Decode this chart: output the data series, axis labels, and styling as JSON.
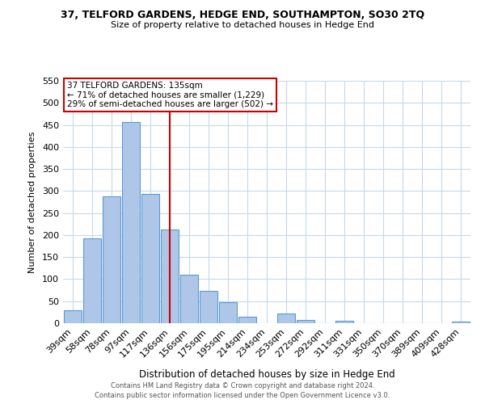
{
  "title_line1": "37, TELFORD GARDENS, HEDGE END, SOUTHAMPTON, SO30 2TQ",
  "title_line2": "Size of property relative to detached houses in Hedge End",
  "xlabel": "Distribution of detached houses by size in Hedge End",
  "ylabel": "Number of detached properties",
  "bin_labels": [
    "39sqm",
    "58sqm",
    "78sqm",
    "97sqm",
    "117sqm",
    "136sqm",
    "156sqm",
    "175sqm",
    "195sqm",
    "214sqm",
    "234sqm",
    "253sqm",
    "272sqm",
    "292sqm",
    "311sqm",
    "331sqm",
    "350sqm",
    "370sqm",
    "389sqm",
    "409sqm",
    "428sqm"
  ],
  "bar_heights": [
    30,
    192,
    287,
    457,
    293,
    213,
    110,
    74,
    47,
    14,
    0,
    22,
    8,
    0,
    5,
    0,
    0,
    0,
    0,
    0,
    3
  ],
  "bar_color": "#aec6e8",
  "bar_edge_color": "#5b9bd5",
  "vline_x": 5,
  "vline_color": "#cc0000",
  "annotation_title": "37 TELFORD GARDENS: 135sqm",
  "annotation_line1": "← 71% of detached houses are smaller (1,229)",
  "annotation_line2": "29% of semi-detached houses are larger (502) →",
  "annotation_box_color": "#ffffff",
  "annotation_box_edge_color": "#cc0000",
  "ylim": [
    0,
    550
  ],
  "yticks": [
    0,
    50,
    100,
    150,
    200,
    250,
    300,
    350,
    400,
    450,
    500,
    550
  ],
  "footer_line1": "Contains HM Land Registry data © Crown copyright and database right 2024.",
  "footer_line2": "Contains public sector information licensed under the Open Government Licence v3.0.",
  "bg_color": "#ffffff",
  "grid_color": "#c8d8e8"
}
